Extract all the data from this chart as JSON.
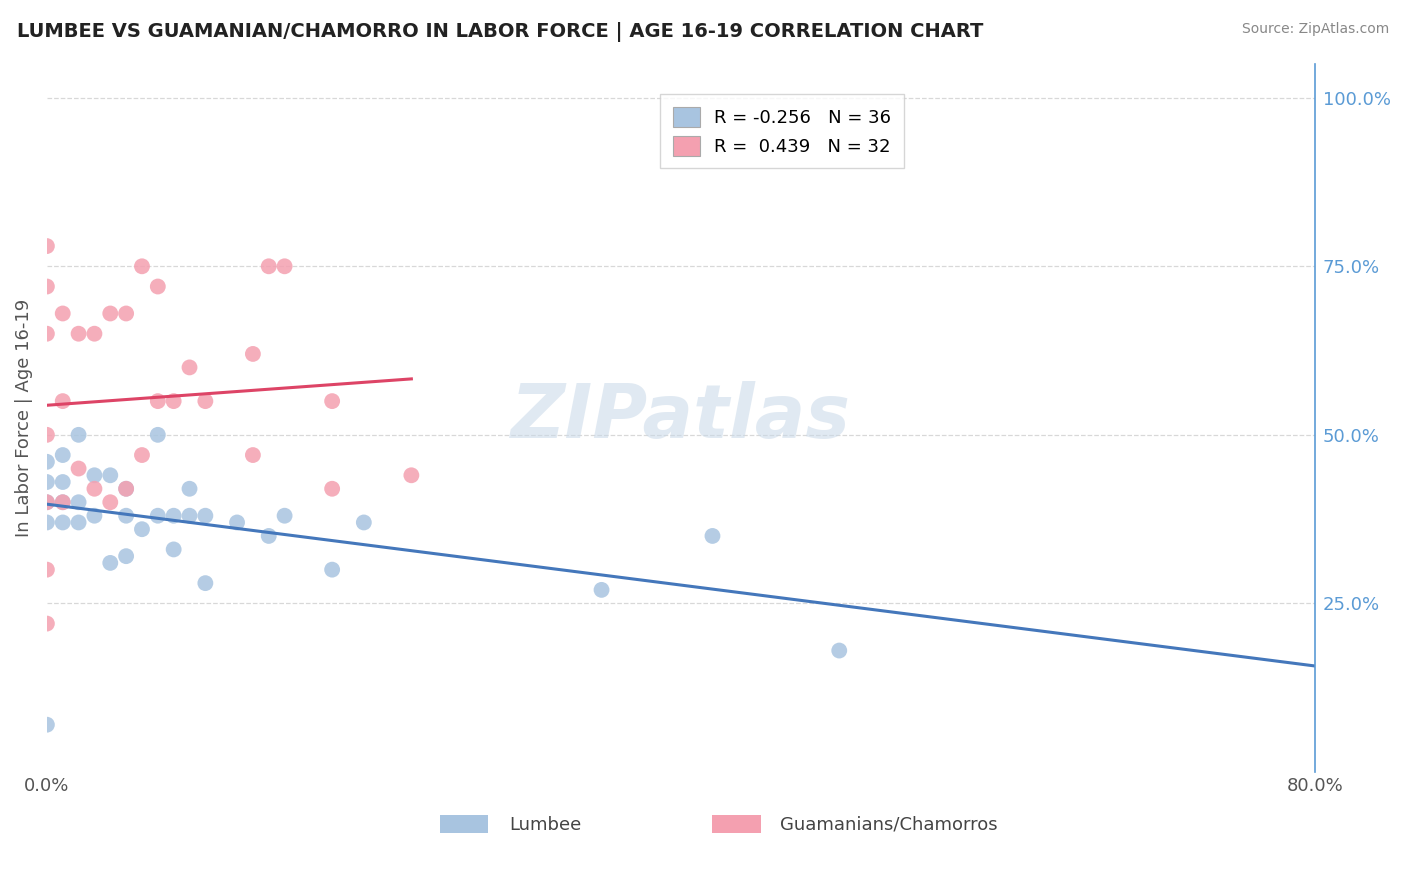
{
  "title": "LUMBEE VS GUAMANIAN/CHAMORRO IN LABOR FORCE | AGE 16-19 CORRELATION CHART",
  "source": "Source: ZipAtlas.com",
  "ylabel": "In Labor Force | Age 16-19",
  "xlim": [
    0.0,
    0.8
  ],
  "ylim": [
    0.0,
    1.05
  ],
  "lumbee_R": "-0.256",
  "lumbee_N": "36",
  "guam_R": "0.439",
  "guam_N": "32",
  "lumbee_color": "#a8c4e0",
  "guam_color": "#f4a0b0",
  "lumbee_line_color": "#4477bb",
  "guam_line_color": "#dd4466",
  "watermark_text": "ZIPatlas",
  "lumbee_scatter_x": [
    0.0,
    0.0,
    0.0,
    0.0,
    0.0,
    0.01,
    0.01,
    0.01,
    0.01,
    0.02,
    0.02,
    0.02,
    0.03,
    0.03,
    0.04,
    0.04,
    0.05,
    0.05,
    0.05,
    0.06,
    0.07,
    0.07,
    0.08,
    0.08,
    0.09,
    0.09,
    0.1,
    0.1,
    0.12,
    0.14,
    0.15,
    0.18,
    0.2,
    0.35,
    0.42,
    0.5
  ],
  "lumbee_scatter_y": [
    0.07,
    0.37,
    0.4,
    0.43,
    0.46,
    0.37,
    0.4,
    0.43,
    0.47,
    0.37,
    0.4,
    0.5,
    0.38,
    0.44,
    0.31,
    0.44,
    0.32,
    0.38,
    0.42,
    0.36,
    0.38,
    0.5,
    0.33,
    0.38,
    0.38,
    0.42,
    0.28,
    0.38,
    0.37,
    0.35,
    0.38,
    0.3,
    0.37,
    0.27,
    0.35,
    0.18
  ],
  "guam_scatter_x": [
    0.0,
    0.0,
    0.0,
    0.0,
    0.0,
    0.0,
    0.0,
    0.01,
    0.01,
    0.01,
    0.02,
    0.02,
    0.03,
    0.03,
    0.04,
    0.04,
    0.05,
    0.05,
    0.06,
    0.06,
    0.07,
    0.07,
    0.08,
    0.09,
    0.1,
    0.13,
    0.13,
    0.14,
    0.15,
    0.18,
    0.18,
    0.23
  ],
  "guam_scatter_y": [
    0.22,
    0.3,
    0.4,
    0.5,
    0.65,
    0.72,
    0.78,
    0.4,
    0.55,
    0.68,
    0.45,
    0.65,
    0.42,
    0.65,
    0.4,
    0.68,
    0.42,
    0.68,
    0.47,
    0.75,
    0.55,
    0.72,
    0.55,
    0.6,
    0.55,
    0.47,
    0.62,
    0.75,
    0.75,
    0.42,
    0.55,
    0.44
  ],
  "background_color": "#ffffff",
  "grid_color": "#d8d8d8"
}
